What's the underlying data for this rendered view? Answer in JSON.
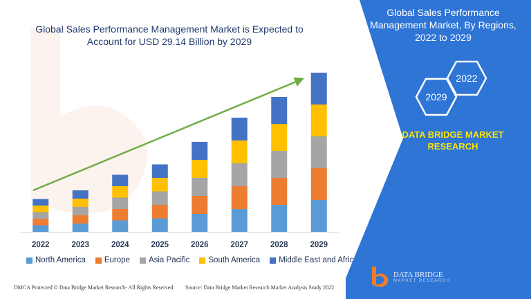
{
  "chart_data": {
    "type": "bar",
    "stacked": true,
    "title": "Global Sales Performance Management Market is Expected to Account for USD 29.14 Billion by 2029",
    "categories": [
      "2022",
      "2023",
      "2024",
      "2025",
      "2026",
      "2027",
      "2028",
      "2029"
    ],
    "series": [
      {
        "name": "North America",
        "color": "#5b9bd5",
        "values": [
          9.5,
          12,
          16.5,
          19.5,
          26,
          33,
          39,
          46
        ]
      },
      {
        "name": "Europe",
        "color": "#ed7d31",
        "values": [
          9.5,
          12,
          16.5,
          19.5,
          26,
          33,
          39,
          46
        ]
      },
      {
        "name": "Asia Pacific",
        "color": "#a5a5a5",
        "values": [
          9.5,
          12,
          16.5,
          19.5,
          26,
          33,
          39,
          46
        ]
      },
      {
        "name": "South America",
        "color": "#ffc000",
        "values": [
          9.5,
          12,
          16.5,
          19.5,
          26,
          33,
          39,
          46
        ]
      },
      {
        "name": "Middle East and Africa",
        "color": "#4472c4",
        "values": [
          9.5,
          12,
          16.5,
          19.5,
          26,
          33,
          39,
          46
        ]
      }
    ],
    "ylim": [
      0,
      235
    ],
    "grid": false,
    "legend": "bottom",
    "trend_arrow": {
      "color": "#70ad47"
    }
  },
  "panel": {
    "title": "Global Sales Performance Management Market, By Regions, 2022 to 2029",
    "hex_start": "2029",
    "hex_end": "2022",
    "brand": "DATA BRIDGE MARKET RESEARCH",
    "background": "#2e75d6"
  },
  "logo": {
    "name": "DATA BRIDGE",
    "tagline": "MARKET RESEARCH"
  },
  "footer": {
    "left": "DMCA Protected © Data Bridge Market Research- All Rights Reserved.",
    "right": "Source: Data Bridge Market Research Market Analysis Study 2022"
  }
}
